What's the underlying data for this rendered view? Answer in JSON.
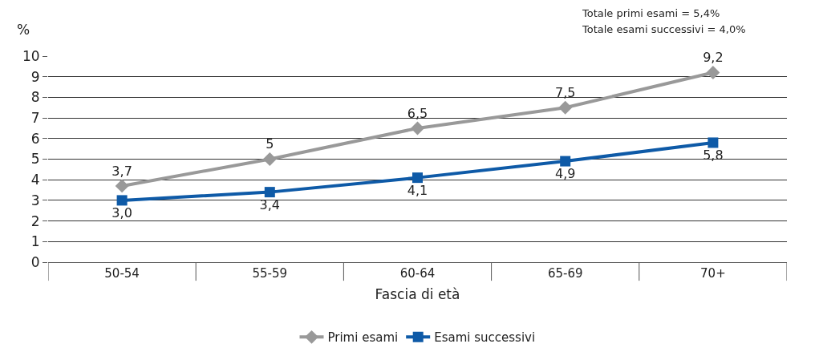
{
  "chart_data": {
    "type": "line",
    "ylabel": "%",
    "xlabel": "Fascia di età",
    "categories": [
      "50-54",
      "55-59",
      "60-64",
      "65-69",
      "70+"
    ],
    "series": [
      {
        "name": "Primi esami",
        "color": "#999999",
        "marker": "diamond",
        "values": [
          3.7,
          5,
          6.5,
          7.5,
          9.2
        ],
        "value_labels": [
          "3,7",
          "5",
          "6,5",
          "7,5",
          "9,2"
        ]
      },
      {
        "name": "Esami successivi",
        "color": "#0e5aa7",
        "marker": "square",
        "values": [
          3.0,
          3.4,
          4.1,
          4.9,
          5.8
        ],
        "value_labels": [
          "3,0",
          "3,4",
          "4,1",
          "4,9",
          "5,8"
        ]
      }
    ],
    "ylim": [
      0,
      10
    ],
    "yticks": [
      0,
      1,
      2,
      3,
      4,
      5,
      6,
      7,
      8,
      9,
      10
    ],
    "grid": "y",
    "legend": "bottom",
    "line_style": "solid",
    "annotations": [
      "Totale primi esami = 5,4%",
      "Totale esami successivi = 4,0%"
    ]
  }
}
